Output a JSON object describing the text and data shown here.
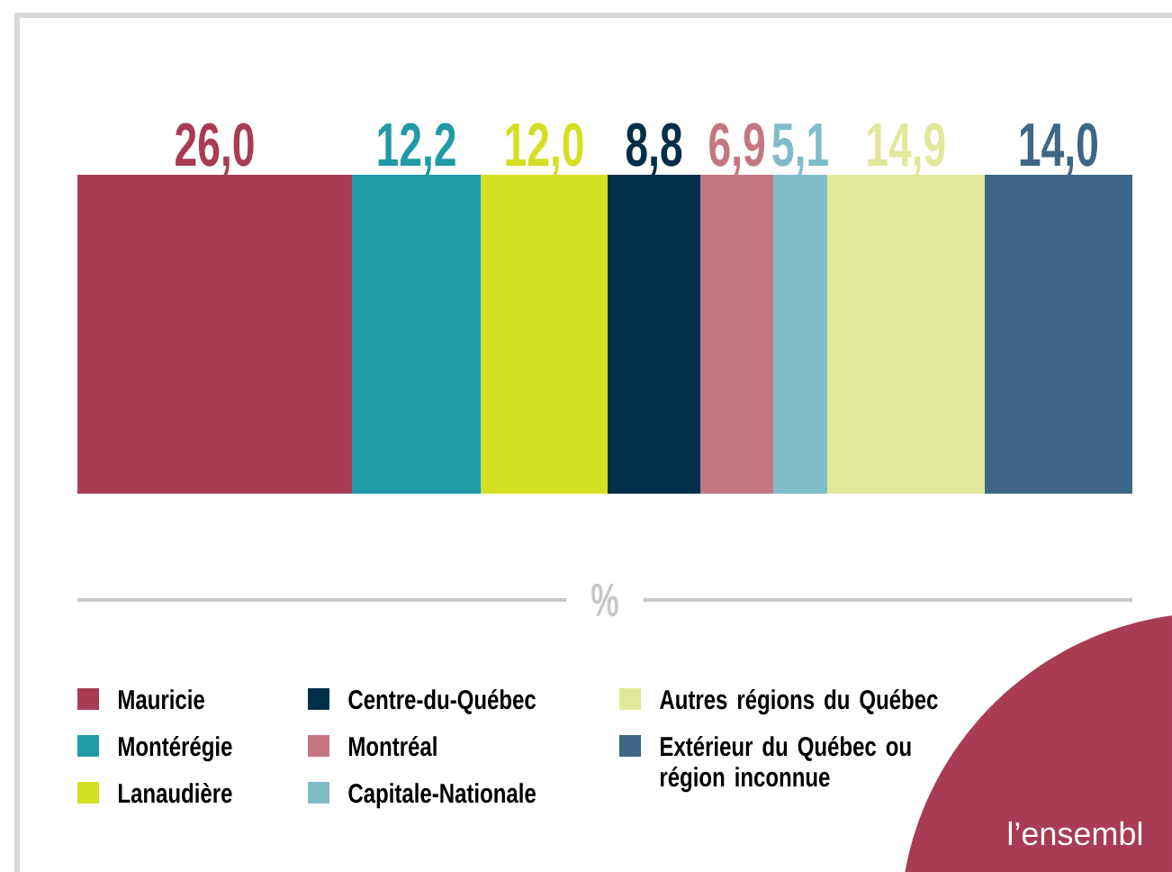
{
  "chart_data": {
    "type": "bar",
    "orientation": "horizontal",
    "stacked": true,
    "categories": [
      null
    ],
    "xlabel": "%",
    "legend": "bottom",
    "series": [
      {
        "name": "Mauricie",
        "color": "#a83c55",
        "values": [
          26.0
        ],
        "value_labels": [
          "26,0"
        ]
      },
      {
        "name": "Montérégie",
        "color": "#219aa7",
        "values": [
          12.2
        ],
        "value_labels": [
          "12,2"
        ]
      },
      {
        "name": "Lanaudière",
        "color": "#d4df22",
        "values": [
          12.0
        ],
        "value_labels": [
          "12,0"
        ]
      },
      {
        "name": "Centre-du-Québec",
        "color": "#002f49",
        "values": [
          8.8
        ],
        "value_labels": [
          "8,8"
        ]
      },
      {
        "name": "Montréal",
        "color": "#c57683",
        "values": [
          6.9
        ],
        "value_labels": [
          "6,9"
        ]
      },
      {
        "name": "Capitale-Nationale",
        "color": "#80bcc8",
        "values": [
          5.1
        ],
        "value_labels": [
          "5,1"
        ]
      },
      {
        "name": "Autres régions du Québec",
        "color": "#e2e89a",
        "values": [
          14.9
        ],
        "value_labels": [
          "14,9"
        ]
      },
      {
        "name": "Extérieur du Québec ou région inconnue",
        "color": "#3d6784",
        "values": [
          14.0
        ],
        "value_labels": [
          "14,0"
        ]
      }
    ],
    "annotations": [
      "l’ensembl"
    ]
  }
}
